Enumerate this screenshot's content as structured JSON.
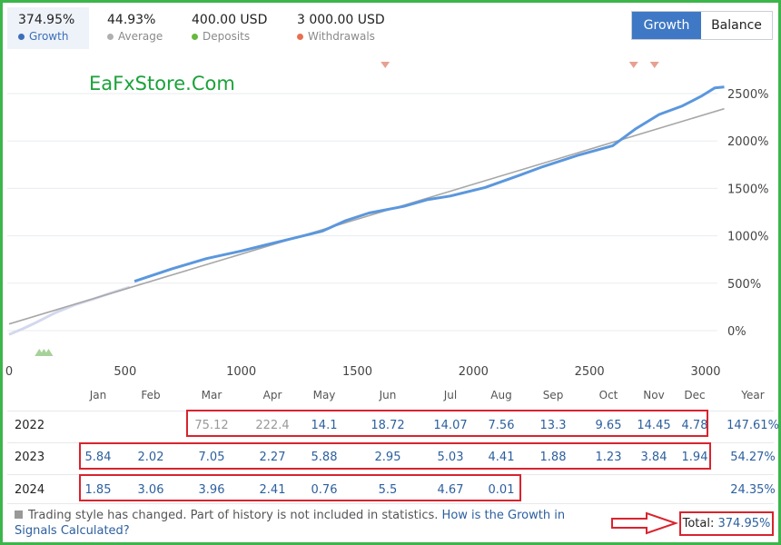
{
  "header": {
    "growth": {
      "value": "374.95%",
      "label": "Growth"
    },
    "average": {
      "value": "44.93%",
      "label": "Average",
      "color": "#b0b0b0"
    },
    "deposits": {
      "value": "400.00 USD",
      "label": "Deposits",
      "color": "#67b83c"
    },
    "withdrawals": {
      "value": "3 000.00 USD",
      "label": "Withdrawals",
      "color": "#e8704f"
    }
  },
  "toggle": {
    "growth_label": "Growth",
    "balance_label": "Balance"
  },
  "watermark": "EaFxStore.Com",
  "chart_data": {
    "type": "line",
    "x_ticks": [
      "0",
      "500",
      "1000",
      "1500",
      "2000",
      "2500",
      "3000"
    ],
    "y_ticks": [
      "0%",
      "500%",
      "1000%",
      "1500%",
      "2000%",
      "2500%"
    ],
    "xlim": [
      0,
      3100
    ],
    "ylim": [
      -120,
      2650
    ],
    "series": [
      {
        "color": "#d4d8ee",
        "points": [
          [
            0,
            -40
          ],
          [
            60,
            20
          ],
          [
            120,
            90
          ],
          [
            200,
            190
          ],
          [
            280,
            270
          ],
          [
            360,
            330
          ],
          [
            430,
            390
          ],
          [
            520,
            460
          ]
        ]
      },
      {
        "color": "#5b97dd",
        "points": [
          [
            540,
            520
          ],
          [
            700,
            650
          ],
          [
            850,
            760
          ],
          [
            1000,
            840
          ],
          [
            1100,
            900
          ],
          [
            1200,
            960
          ],
          [
            1350,
            1050
          ],
          [
            1450,
            1160
          ],
          [
            1550,
            1240
          ],
          [
            1700,
            1310
          ],
          [
            1800,
            1380
          ],
          [
            1900,
            1420
          ],
          [
            2050,
            1510
          ],
          [
            2200,
            1640
          ],
          [
            2300,
            1730
          ],
          [
            2450,
            1850
          ],
          [
            2600,
            1950
          ],
          [
            2700,
            2130
          ],
          [
            2800,
            2280
          ],
          [
            2900,
            2370
          ],
          [
            2980,
            2470
          ],
          [
            3040,
            2560
          ],
          [
            3080,
            2570
          ]
        ]
      },
      {
        "color": "#a7a7a7",
        "points": [
          [
            0,
            70
          ],
          [
            3080,
            2340
          ]
        ]
      }
    ],
    "markers": {
      "color": "#e8a090",
      "x": [
        1620,
        2690,
        2780
      ]
    },
    "deposit_markers": {
      "color": "#a6d29a",
      "x": [
        130,
        150,
        170
      ]
    }
  },
  "table": {
    "months": [
      "Jan",
      "Feb",
      "Mar",
      "Apr",
      "May",
      "Jun",
      "Jul",
      "Aug",
      "Sep",
      "Oct",
      "Nov",
      "Dec"
    ],
    "year_header": "Year",
    "rows": [
      {
        "year": "2022",
        "values": [
          "",
          "",
          "75.12",
          "222.4",
          "14.1",
          "18.72",
          "14.07",
          "7.56",
          "13.3",
          "9.65",
          "14.45",
          "4.78"
        ],
        "gray": [
          2,
          3
        ],
        "total": "147.61%"
      },
      {
        "year": "2023",
        "values": [
          "5.84",
          "2.02",
          "7.05",
          "2.27",
          "5.88",
          "2.95",
          "5.03",
          "4.41",
          "1.88",
          "1.23",
          "3.84",
          "1.94"
        ],
        "gray": [],
        "total": "54.27%"
      },
      {
        "year": "2024",
        "values": [
          "1.85",
          "3.06",
          "3.96",
          "2.41",
          "0.76",
          "5.5",
          "4.67",
          "0.01",
          "",
          "",
          "",
          ""
        ],
        "gray": [],
        "total": "24.35%"
      }
    ]
  },
  "note": {
    "text": "Trading style has changed. Part of history is not included in statistics.",
    "link": "How is the Growth in Signals Calculated?"
  },
  "total": {
    "label": "Total:",
    "value": "374.95%"
  }
}
